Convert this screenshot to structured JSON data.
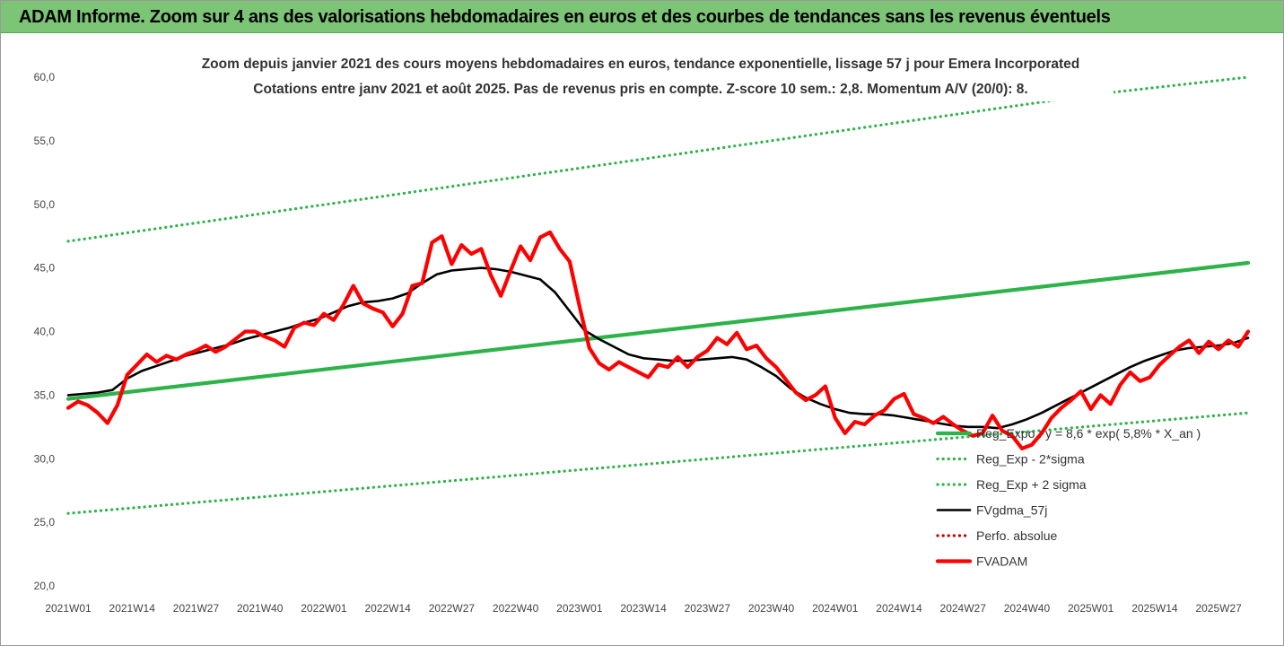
{
  "header": {
    "banner_title": "ADAM Informe. Zoom sur 4 ans des valorisations hebdomadaires en euros et des courbes de tendances sans les revenus éventuels"
  },
  "colors": {
    "banner_bg": "#7cc576",
    "trend": "#2db34a",
    "band": "#2db34a",
    "average": "#000000",
    "price": "#ff0000"
  },
  "chart_data": {
    "type": "line",
    "title": "Zoom depuis janvier 2021 des cours moyens hebdomadaires en euros, tendance exponentielle, lissage 57 j pour Emera Incorporated",
    "subtitle": "Cotations entre janv 2021 et août 2025.  Pas de revenus pris en compte. Z-score 10 sem.: 2,8. Momentum A/V (20/0): 8.",
    "xlabel": "",
    "ylabel": "",
    "ylim": [
      20,
      60
    ],
    "yticks": [
      "60,0",
      "55,0",
      "50,0",
      "45,0",
      "40,0",
      "35,0",
      "30,0",
      "25,0",
      "20,0"
    ],
    "x_ticks": [
      "2021W01",
      "2021W14",
      "2021W27",
      "2021W40",
      "2022W01",
      "2022W14",
      "2022W27",
      "2022W40",
      "2023W01",
      "2023W14",
      "2023W27",
      "2023W40",
      "2024W01",
      "2024W14",
      "2024W27",
      "2024W40",
      "2025W01",
      "2025W14",
      "2025W27"
    ],
    "x_weeks": [
      0,
      240
    ],
    "grid": false,
    "legend_position": "bottom-right",
    "series": [
      {
        "name": "Reg_Expo : y = 8,6 * exp( 5,8% *  X_an )",
        "style": "solid-thick",
        "color": "#2db34a",
        "points": [
          [
            0,
            34.7
          ],
          [
            240,
            45.4
          ]
        ]
      },
      {
        "name": "Reg_Exp - 2*sigma",
        "style": "dotted",
        "color": "#2db34a",
        "points": [
          [
            0,
            25.7
          ],
          [
            240,
            33.6
          ]
        ]
      },
      {
        "name": "Reg_Exp + 2 sigma",
        "style": "dotted",
        "color": "#2db34a",
        "points": [
          [
            0,
            47.1
          ],
          [
            210,
            58.7
          ],
          [
            240,
            60.0
          ]
        ]
      },
      {
        "name": "FVgdma_57j",
        "style": "solid",
        "color": "#000000",
        "points": [
          [
            0,
            35.0
          ],
          [
            3,
            35.1
          ],
          [
            6,
            35.2
          ],
          [
            9,
            35.4
          ],
          [
            12,
            36.3
          ],
          [
            15,
            36.9
          ],
          [
            18,
            37.3
          ],
          [
            21,
            37.7
          ],
          [
            24,
            38.1
          ],
          [
            27,
            38.4
          ],
          [
            30,
            38.7
          ],
          [
            33,
            39.0
          ],
          [
            36,
            39.4
          ],
          [
            39,
            39.7
          ],
          [
            42,
            40.0
          ],
          [
            45,
            40.3
          ],
          [
            48,
            40.7
          ],
          [
            51,
            41.0
          ],
          [
            54,
            41.5
          ],
          [
            57,
            42.0
          ],
          [
            60,
            42.3
          ],
          [
            63,
            42.4
          ],
          [
            66,
            42.6
          ],
          [
            69,
            43.0
          ],
          [
            72,
            43.8
          ],
          [
            75,
            44.5
          ],
          [
            78,
            44.8
          ],
          [
            81,
            44.9
          ],
          [
            84,
            45.0
          ],
          [
            87,
            44.9
          ],
          [
            90,
            44.7
          ],
          [
            93,
            44.4
          ],
          [
            96,
            44.1
          ],
          [
            99,
            43.1
          ],
          [
            102,
            41.6
          ],
          [
            105,
            40.1
          ],
          [
            108,
            39.4
          ],
          [
            111,
            38.8
          ],
          [
            114,
            38.2
          ],
          [
            117,
            37.9
          ],
          [
            120,
            37.8
          ],
          [
            123,
            37.7
          ],
          [
            126,
            37.7
          ],
          [
            129,
            37.8
          ],
          [
            132,
            37.9
          ],
          [
            135,
            38.0
          ],
          [
            138,
            37.8
          ],
          [
            141,
            37.2
          ],
          [
            144,
            36.5
          ],
          [
            147,
            35.5
          ],
          [
            150,
            34.8
          ],
          [
            153,
            34.3
          ],
          [
            156,
            33.9
          ],
          [
            159,
            33.6
          ],
          [
            162,
            33.5
          ],
          [
            165,
            33.5
          ],
          [
            168,
            33.4
          ],
          [
            171,
            33.2
          ],
          [
            174,
            33.0
          ],
          [
            177,
            32.8
          ],
          [
            180,
            32.6
          ],
          [
            183,
            32.5
          ],
          [
            186,
            32.5
          ],
          [
            189,
            32.4
          ],
          [
            192,
            32.7
          ],
          [
            195,
            33.1
          ],
          [
            198,
            33.6
          ],
          [
            201,
            34.2
          ],
          [
            204,
            34.8
          ],
          [
            207,
            35.4
          ],
          [
            210,
            36.0
          ],
          [
            213,
            36.6
          ],
          [
            216,
            37.2
          ],
          [
            219,
            37.7
          ],
          [
            222,
            38.1
          ],
          [
            225,
            38.5
          ],
          [
            228,
            38.7
          ],
          [
            231,
            38.8
          ],
          [
            234,
            38.9
          ],
          [
            237,
            39.1
          ],
          [
            240,
            39.5
          ]
        ]
      },
      {
        "name": "Perfo. absolue",
        "style": "dotted",
        "color": "#c00000",
        "points": []
      },
      {
        "name": "FVADAM",
        "style": "solid-thick",
        "color": "#ff0000",
        "points": [
          [
            0,
            34.0
          ],
          [
            2,
            34.5
          ],
          [
            4,
            34.2
          ],
          [
            6,
            33.6
          ],
          [
            8,
            32.8
          ],
          [
            10,
            34.2
          ],
          [
            12,
            36.6
          ],
          [
            14,
            37.4
          ],
          [
            16,
            38.2
          ],
          [
            18,
            37.6
          ],
          [
            20,
            38.1
          ],
          [
            22,
            37.8
          ],
          [
            24,
            38.2
          ],
          [
            26,
            38.5
          ],
          [
            28,
            38.9
          ],
          [
            30,
            38.4
          ],
          [
            32,
            38.8
          ],
          [
            34,
            39.4
          ],
          [
            36,
            40.0
          ],
          [
            38,
            40.0
          ],
          [
            40,
            39.6
          ],
          [
            42,
            39.3
          ],
          [
            44,
            38.8
          ],
          [
            46,
            40.3
          ],
          [
            48,
            40.7
          ],
          [
            50,
            40.5
          ],
          [
            52,
            41.4
          ],
          [
            54,
            40.9
          ],
          [
            56,
            42.1
          ],
          [
            58,
            43.6
          ],
          [
            60,
            42.2
          ],
          [
            62,
            41.8
          ],
          [
            64,
            41.5
          ],
          [
            66,
            40.4
          ],
          [
            68,
            41.4
          ],
          [
            70,
            43.6
          ],
          [
            72,
            43.8
          ],
          [
            74,
            47.0
          ],
          [
            76,
            47.5
          ],
          [
            78,
            45.3
          ],
          [
            80,
            46.8
          ],
          [
            82,
            46.1
          ],
          [
            84,
            46.5
          ],
          [
            86,
            44.4
          ],
          [
            88,
            42.8
          ],
          [
            90,
            44.8
          ],
          [
            92,
            46.7
          ],
          [
            94,
            45.6
          ],
          [
            96,
            47.4
          ],
          [
            98,
            47.8
          ],
          [
            100,
            46.5
          ],
          [
            102,
            45.5
          ],
          [
            104,
            42.0
          ],
          [
            106,
            38.7
          ],
          [
            108,
            37.5
          ],
          [
            110,
            37.0
          ],
          [
            112,
            37.6
          ],
          [
            114,
            37.2
          ],
          [
            116,
            36.8
          ],
          [
            118,
            36.4
          ],
          [
            120,
            37.4
          ],
          [
            122,
            37.2
          ],
          [
            124,
            38.0
          ],
          [
            126,
            37.2
          ],
          [
            128,
            38.0
          ],
          [
            130,
            38.5
          ],
          [
            132,
            39.5
          ],
          [
            134,
            39.0
          ],
          [
            136,
            39.9
          ],
          [
            138,
            38.6
          ],
          [
            140,
            38.9
          ],
          [
            142,
            37.9
          ],
          [
            144,
            37.2
          ],
          [
            146,
            36.2
          ],
          [
            148,
            35.2
          ],
          [
            150,
            34.6
          ],
          [
            152,
            35.0
          ],
          [
            154,
            35.7
          ],
          [
            156,
            33.2
          ],
          [
            158,
            32.0
          ],
          [
            160,
            32.9
          ],
          [
            162,
            32.7
          ],
          [
            164,
            33.4
          ],
          [
            166,
            33.8
          ],
          [
            168,
            34.7
          ],
          [
            170,
            35.1
          ],
          [
            172,
            33.5
          ],
          [
            174,
            33.2
          ],
          [
            176,
            32.8
          ],
          [
            178,
            33.3
          ],
          [
            180,
            32.7
          ],
          [
            182,
            32.2
          ],
          [
            184,
            31.8
          ],
          [
            186,
            32.0
          ],
          [
            188,
            33.4
          ],
          [
            190,
            32.2
          ],
          [
            192,
            31.8
          ],
          [
            194,
            30.8
          ],
          [
            196,
            31.1
          ],
          [
            198,
            32.0
          ],
          [
            200,
            33.2
          ],
          [
            202,
            34.0
          ],
          [
            204,
            34.6
          ],
          [
            206,
            35.3
          ],
          [
            208,
            33.9
          ],
          [
            210,
            35.0
          ],
          [
            212,
            34.3
          ],
          [
            214,
            35.8
          ],
          [
            216,
            36.8
          ],
          [
            218,
            36.1
          ],
          [
            220,
            36.4
          ],
          [
            222,
            37.4
          ],
          [
            224,
            38.1
          ],
          [
            226,
            38.8
          ],
          [
            228,
            39.3
          ],
          [
            230,
            38.3
          ],
          [
            232,
            39.2
          ],
          [
            234,
            38.6
          ],
          [
            236,
            39.3
          ],
          [
            238,
            38.8
          ],
          [
            240,
            40.0
          ]
        ]
      }
    ]
  }
}
